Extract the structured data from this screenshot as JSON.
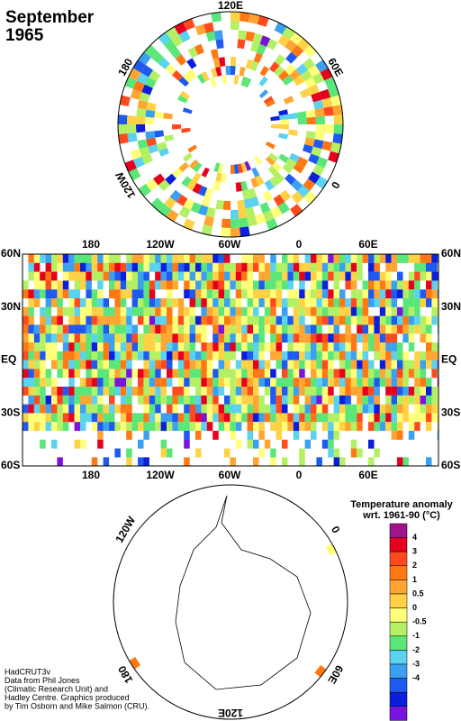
{
  "title": "September",
  "year": "1965",
  "north_polar": {
    "labels": [
      "120E",
      "60E",
      "0",
      "120W",
      "180"
    ]
  },
  "map": {
    "top_labels": [
      "180",
      "120W",
      "60W",
      "0",
      "60E"
    ],
    "bottom_labels": [
      "180",
      "120W",
      "60W",
      "0",
      "60E"
    ],
    "lat_labels": [
      "60N",
      "30N",
      "EQ",
      "30S",
      "60S"
    ]
  },
  "south_polar": {
    "labels": [
      "120W",
      "0",
      "60E",
      "120E",
      "180"
    ]
  },
  "legend": {
    "title": "Temperature anomaly",
    "subtitle": "wrt. 1961-90  (°C)",
    "ticks": [
      4,
      3,
      2,
      1,
      0.5,
      0,
      -0.5,
      -1,
      -2,
      -3,
      -4
    ],
    "colors": [
      "#a0148c",
      "#e6001e",
      "#ff4a1e",
      "#ff7814",
      "#ffa532",
      "#ffd246",
      "#ffff78",
      "#b4f064",
      "#5ae678",
      "#5ad2f0",
      "#3ca0f0",
      "#1e5af0",
      "#0a1edc",
      "#7814dc"
    ]
  },
  "credits": [
    "HadCRUT3v",
    "Data from Phil Jones",
    "(Climatic Research Unit) and",
    "Hadley Centre.  Graphics produced",
    "by Tim Osborn and Mike Salmon (CRU)."
  ]
}
